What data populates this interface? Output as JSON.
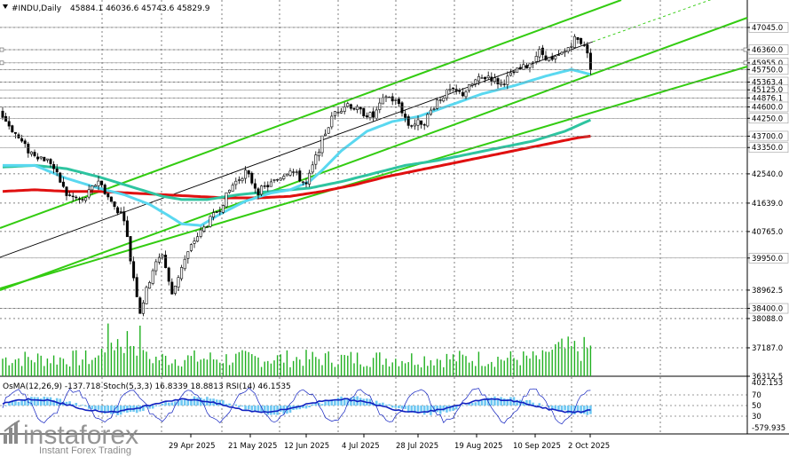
{
  "header": {
    "symbol": "#INDU,Daily",
    "ohlc": "45884.1 46036.6 45743.6 45829.9"
  },
  "indicator_header": "OsMA(12,26,9) -137.718  Stoch(5,3,3) 16.8339 18.8813  RSI(14) 46.1535",
  "watermark": {
    "brand": "instaforex",
    "tagline": "Instant Forex Trading"
  },
  "colors": {
    "background": "#ffffff",
    "candles": "#000000",
    "ema_fast": "#5ad8f0",
    "ema_mid": "#2ec4a0",
    "ema_slow": "#e01010",
    "channel": "#33cc11",
    "trend_black": "#000000",
    "volume": "#20b020",
    "osma": "#6fc8f2",
    "stoch_main": "#1020c0",
    "rsi": "#1020c0",
    "grid": "#000000"
  },
  "chart_data": {
    "type": "candlestick",
    "title": "#INDU,Daily",
    "ylim": [
      36312.5,
      47780
    ],
    "grid": true,
    "price_axis_ticks": [
      "47045.0",
      "46360.0",
      "45955.0",
      "45750.0",
      "45363.4",
      "45125.0",
      "44876.1",
      "44600.0",
      "44250.0",
      "43700.0",
      "43350.0",
      "42540.0",
      "41639.0",
      "40765.0",
      "39950.0",
      "38962.5",
      "38400.0",
      "38088.0",
      "37187.0",
      "36312.5"
    ],
    "highlighted_levels": [
      "47045.0",
      "46360.0",
      "45955.0",
      "45750.0",
      "45363.4",
      "45125.0",
      "44876.1",
      "44600.0",
      "44250.0",
      "43700.0",
      "43350.0",
      "39950.0",
      "38400.0"
    ],
    "time_axis_labels": [
      "29 Apr 2025",
      "21 May 2025",
      "12 Jun 2025",
      "4 Jul 2025",
      "28 Jul 2025",
      "19 Aug 2025",
      "10 Sep 2025",
      "2 Oct 2025"
    ],
    "close_anchors": [
      [
        0,
        44300
      ],
      [
        8,
        43250
      ],
      [
        15,
        42900
      ],
      [
        20,
        41900
      ],
      [
        25,
        41700
      ],
      [
        30,
        42350
      ],
      [
        34,
        41650
      ],
      [
        38,
        41200
      ],
      [
        40,
        39900
      ],
      [
        43,
        38300
      ],
      [
        47,
        39600
      ],
      [
        50,
        40100
      ],
      [
        53,
        38800
      ],
      [
        56,
        39700
      ],
      [
        60,
        40500
      ],
      [
        64,
        41000
      ],
      [
        68,
        41500
      ],
      [
        72,
        42200
      ],
      [
        76,
        42600
      ],
      [
        80,
        42000
      ],
      [
        85,
        42300
      ],
      [
        90,
        42700
      ],
      [
        95,
        42200
      ],
      [
        100,
        43600
      ],
      [
        104,
        44450
      ],
      [
        108,
        44700
      ],
      [
        112,
        44450
      ],
      [
        116,
        44300
      ],
      [
        120,
        44950
      ],
      [
        124,
        44700
      ],
      [
        127,
        44050
      ],
      [
        132,
        44150
      ],
      [
        136,
        44800
      ],
      [
        140,
        45100
      ],
      [
        144,
        45000
      ],
      [
        148,
        45400
      ],
      [
        152,
        45550
      ],
      [
        156,
        45300
      ],
      [
        160,
        45650
      ],
      [
        164,
        45850
      ],
      [
        168,
        46300
      ],
      [
        172,
        46000
      ],
      [
        176,
        46300
      ],
      [
        179,
        46700
      ],
      [
        182,
        46550
      ],
      [
        184,
        45829.9
      ]
    ],
    "ma_anchors": {
      "ema_fast": [
        [
          0,
          42800
        ],
        [
          10,
          42800
        ],
        [
          20,
          42400
        ],
        [
          30,
          42100
        ],
        [
          38,
          41900
        ],
        [
          46,
          41600
        ],
        [
          52,
          41250
        ],
        [
          56,
          41000
        ],
        [
          62,
          40950
        ],
        [
          68,
          41300
        ],
        [
          76,
          41700
        ],
        [
          84,
          41950
        ],
        [
          90,
          42050
        ],
        [
          96,
          42300
        ],
        [
          100,
          42650
        ],
        [
          106,
          43250
        ],
        [
          114,
          43850
        ],
        [
          122,
          44150
        ],
        [
          130,
          44300
        ],
        [
          140,
          44650
        ],
        [
          150,
          45000
        ],
        [
          160,
          45250
        ],
        [
          170,
          45550
        ],
        [
          178,
          45750
        ],
        [
          184,
          45600
        ]
      ],
      "ema_mid": [
        [
          0,
          42750
        ],
        [
          10,
          42800
        ],
        [
          20,
          42700
        ],
        [
          30,
          42450
        ],
        [
          40,
          42150
        ],
        [
          50,
          41850
        ],
        [
          56,
          41750
        ],
        [
          64,
          41750
        ],
        [
          74,
          41900
        ],
        [
          84,
          42000
        ],
        [
          96,
          42100
        ],
        [
          106,
          42300
        ],
        [
          116,
          42550
        ],
        [
          126,
          42800
        ],
        [
          136,
          42950
        ],
        [
          146,
          43150
        ],
        [
          156,
          43350
        ],
        [
          166,
          43550
        ],
        [
          176,
          43850
        ],
        [
          184,
          44200
        ]
      ],
      "ema_slow": [
        [
          0,
          42000
        ],
        [
          10,
          42050
        ],
        [
          20,
          42000
        ],
        [
          30,
          42000
        ],
        [
          40,
          41950
        ],
        [
          50,
          41900
        ],
        [
          60,
          41850
        ],
        [
          70,
          41800
        ],
        [
          80,
          41800
        ],
        [
          90,
          41850
        ],
        [
          100,
          42000
        ],
        [
          110,
          42200
        ],
        [
          120,
          42450
        ],
        [
          130,
          42650
        ],
        [
          140,
          42850
        ],
        [
          150,
          43050
        ],
        [
          160,
          43250
        ],
        [
          170,
          43450
        ],
        [
          180,
          43650
        ],
        [
          184,
          43700
        ]
      ]
    },
    "indicators": {
      "osma": {
        "name": "OsMA(12,26,9)",
        "last": -137.718
      },
      "stoch": {
        "name": "Stoch(5,3,3)",
        "main": 16.8339,
        "signal": 18.8813
      },
      "rsi": {
        "name": "RSI(14)",
        "last": 46.1535
      },
      "axis_labels": [
        "402.153",
        "70",
        "50",
        "30",
        "-579.935"
      ]
    }
  }
}
